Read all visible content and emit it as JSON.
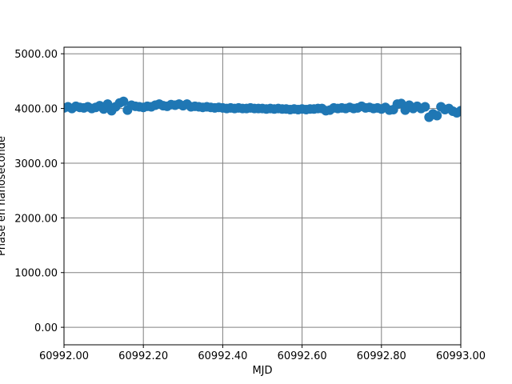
{
  "chart_data": {
    "type": "scatter",
    "xlabel": "MJD",
    "ylabel": "Phase en nanoseconde",
    "xlim": [
      60992.0,
      60993.0
    ],
    "xticks": [
      {
        "value": 60992.0,
        "label": "60992.00"
      },
      {
        "value": 60992.2,
        "label": "60992.20"
      },
      {
        "value": 60992.4,
        "label": "60992.40"
      },
      {
        "value": 60992.6,
        "label": "60992.60"
      },
      {
        "value": 60992.8,
        "label": "60992.80"
      },
      {
        "value": 60993.0,
        "label": "60993.00"
      }
    ],
    "ylim": [
      -320,
      5120
    ],
    "yticks": [
      {
        "value": 0,
        "label": "0.00"
      },
      {
        "value": 1000,
        "label": "1000.00"
      },
      {
        "value": 2000,
        "label": "2000.00"
      },
      {
        "value": 3000,
        "label": "3000.00"
      },
      {
        "value": 4000,
        "label": "4000.00"
      },
      {
        "value": 5000,
        "label": "5000.00"
      }
    ],
    "grid": true,
    "color": "#1f77b4",
    "x": [
      60992.0,
      60992.01,
      60992.02,
      60992.03,
      60992.04,
      60992.05,
      60992.06,
      60992.07,
      60992.08,
      60992.09,
      60992.1,
      60992.11,
      60992.12,
      60992.13,
      60992.14,
      60992.15,
      60992.16,
      60992.17,
      60992.18,
      60992.19,
      60992.2,
      60992.21,
      60992.22,
      60992.23,
      60992.24,
      60992.25,
      60992.26,
      60992.27,
      60992.28,
      60992.29,
      60992.3,
      60992.31,
      60992.32,
      60992.33,
      60992.34,
      60992.35,
      60992.36,
      60992.37,
      60992.38,
      60992.39,
      60992.4,
      60992.41,
      60992.42,
      60992.43,
      60992.44,
      60992.45,
      60992.46,
      60992.47,
      60992.48,
      60992.49,
      60992.5,
      60992.51,
      60992.52,
      60992.53,
      60992.54,
      60992.55,
      60992.56,
      60992.57,
      60992.58,
      60992.59,
      60992.6,
      60992.61,
      60992.62,
      60992.63,
      60992.64,
      60992.65,
      60992.66,
      60992.67,
      60992.68,
      60992.69,
      60992.7,
      60992.71,
      60992.72,
      60992.73,
      60992.74,
      60992.75,
      60992.76,
      60992.77,
      60992.78,
      60992.79,
      60992.8,
      60992.81,
      60992.82,
      60992.83,
      60992.84,
      60992.85,
      60992.86,
      60992.87,
      60992.88,
      60992.89,
      60992.9,
      60992.91,
      60992.92,
      60992.93,
      60992.94,
      60992.95,
      60992.96,
      60992.97,
      60992.98,
      60992.99,
      60993.0
    ],
    "values": [
      4010,
      4030,
      4000,
      4040,
      4020,
      4010,
      4030,
      4000,
      4020,
      4050,
      3990,
      4080,
      3960,
      4030,
      4100,
      4130,
      3970,
      4060,
      4040,
      4030,
      4020,
      4040,
      4030,
      4060,
      4080,
      4050,
      4040,
      4070,
      4060,
      4080,
      4050,
      4080,
      4030,
      4040,
      4030,
      4020,
      4030,
      4020,
      4010,
      4020,
      4010,
      4000,
      4010,
      4000,
      4010,
      4000,
      4000,
      4010,
      4000,
      4000,
      4000,
      3990,
      4000,
      3990,
      4000,
      3990,
      3990,
      3980,
      3990,
      3980,
      3990,
      3980,
      3990,
      3990,
      4000,
      4000,
      3960,
      3970,
      4010,
      4000,
      4010,
      4000,
      4020,
      4000,
      4010,
      4040,
      4010,
      4020,
      4000,
      4010,
      3990,
      4020,
      3970,
      3980,
      4080,
      4090,
      3970,
      4060,
      4000,
      4040,
      4000,
      4030,
      3840,
      3900,
      3870,
      4030,
      3980,
      4000,
      3950,
      3920,
      3960
    ]
  }
}
